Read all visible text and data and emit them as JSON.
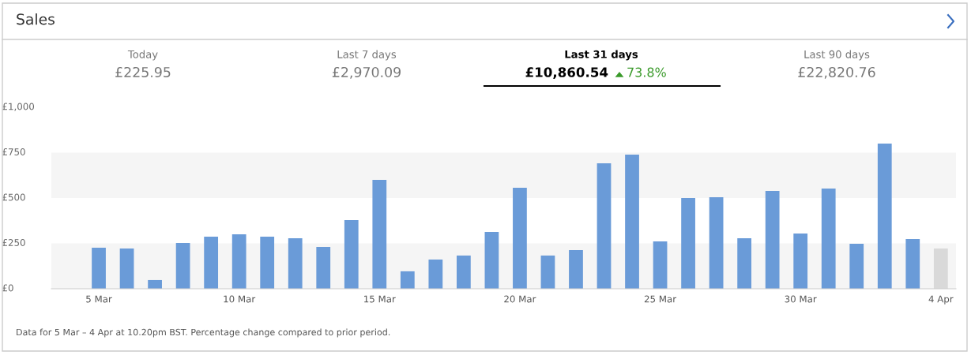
{
  "chart_data": {
    "type": "bar",
    "title": "Sales",
    "categories": [
      "5 Mar",
      null,
      null,
      null,
      null,
      "10 Mar",
      null,
      null,
      null,
      null,
      "15 Mar",
      null,
      null,
      null,
      null,
      "20 Mar",
      null,
      null,
      null,
      null,
      "25 Mar",
      null,
      null,
      null,
      null,
      "30 Mar",
      null,
      null,
      null,
      null,
      "4 Apr"
    ],
    "values": [
      226,
      222,
      48,
      252,
      287,
      300,
      287,
      278,
      230,
      378,
      600,
      96,
      161,
      183,
      313,
      557,
      183,
      213,
      691,
      739,
      261,
      500,
      504,
      278,
      539,
      304,
      552,
      248,
      800,
      274,
      222
    ],
    "colors": [
      "#6a9bd8",
      "#6a9bd8",
      "#6a9bd8",
      "#6a9bd8",
      "#6a9bd8",
      "#6a9bd8",
      "#6a9bd8",
      "#6a9bd8",
      "#6a9bd8",
      "#6a9bd8",
      "#6a9bd8",
      "#6a9bd8",
      "#6a9bd8",
      "#6a9bd8",
      "#6a9bd8",
      "#6a9bd8",
      "#6a9bd8",
      "#6a9bd8",
      "#6a9bd8",
      "#6a9bd8",
      "#6a9bd8",
      "#6a9bd8",
      "#6a9bd8",
      "#6a9bd8",
      "#6a9bd8",
      "#6a9bd8",
      "#6a9bd8",
      "#6a9bd8",
      "#6a9bd8",
      "#6a9bd8",
      "#d9d9d9"
    ],
    "ylim": [
      0,
      1000
    ],
    "yticks": [
      {
        "value": 0,
        "label": "£0"
      },
      {
        "value": 250,
        "label": "£250"
      },
      {
        "value": 500,
        "label": "£500"
      },
      {
        "value": 750,
        "label": "£750"
      },
      {
        "value": 1000,
        "label": "£1,000"
      }
    ],
    "bands": [
      {
        "axis": "y",
        "from": 0,
        "to": 250,
        "color": "#f5f5f5"
      },
      {
        "axis": "y",
        "from": 500,
        "to": 750,
        "color": "#f5f5f5"
      }
    ],
    "grid": false,
    "annotations": [
      "Today",
      "£225.95",
      "Last 7 days",
      "£2,970.09",
      "Last 31 days",
      "£10,860.54",
      "73.8%",
      "Last 90 days",
      "£22,820.76",
      "Data for 5 Mar – 4 Apr at 10.20pm BST. Percentage change compared to prior period."
    ]
  }
}
